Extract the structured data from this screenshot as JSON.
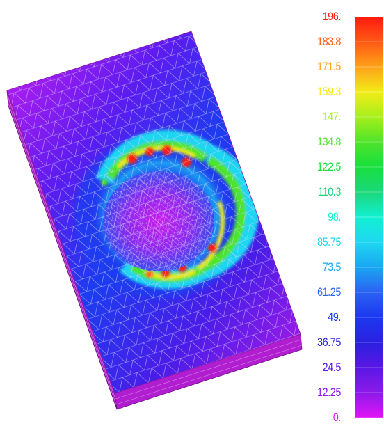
{
  "legend": {
    "ticks": [
      "196.",
      "183.8",
      "171.5",
      "159.3",
      "147.",
      "134.8",
      "122.5",
      "110.3",
      "98.",
      "85.75",
      "73.5",
      "61.25",
      "49.",
      "36.75",
      "24.5",
      "12.25",
      "0."
    ],
    "colors": [
      "#ff1a0e",
      "#ff5a14",
      "#ffa01a",
      "#f2ec18",
      "#a6ef1c",
      "#4ee42a",
      "#18df3c",
      "#1cd77a",
      "#12f0d2",
      "#1fd6f2",
      "#1aa6f2",
      "#2a62f2",
      "#1c38f0",
      "#2a20de",
      "#5a18e4",
      "#8c1ae8",
      "#e014f6"
    ]
  }
}
